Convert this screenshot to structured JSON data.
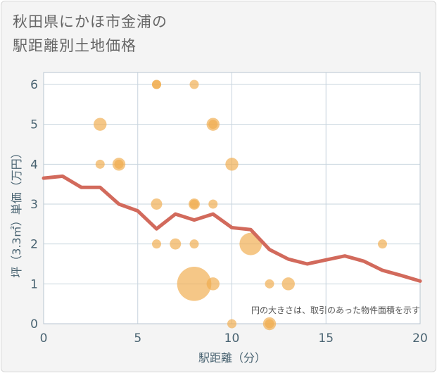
{
  "title_line1": "秋田県にかほ市金浦の",
  "title_line2": "駅距離別土地価格",
  "note": "円の大きさは、取引のあった物件面積を示す",
  "colors": {
    "background": "#f4f4f4",
    "plot": "#ffffff",
    "grid": "#c7d4de",
    "bubble": "#f0ad4e",
    "line": "#d26a5c",
    "axis_text": "#4a6472"
  },
  "chart_data": {
    "type": "scatter",
    "xlabel": "駅距離（分）",
    "ylabel": "坪（3.3㎡）単価（万円）",
    "xlim": [
      0,
      20
    ],
    "ylim": [
      0,
      6.3
    ],
    "xticks": [
      0,
      5,
      10,
      15,
      20
    ],
    "yticks": [
      0,
      1,
      2,
      3,
      4,
      5,
      6
    ],
    "bubbles": [
      {
        "x": 3,
        "y": 5,
        "size": 2
      },
      {
        "x": 3,
        "y": 4,
        "size": 1
      },
      {
        "x": 4,
        "y": 4,
        "size": 2
      },
      {
        "x": 4,
        "y": 4,
        "size": 1
      },
      {
        "x": 6,
        "y": 6,
        "size": 1
      },
      {
        "x": 6,
        "y": 6,
        "size": 1
      },
      {
        "x": 6,
        "y": 3,
        "size": 1.5
      },
      {
        "x": 6,
        "y": 2,
        "size": 1
      },
      {
        "x": 7,
        "y": 2,
        "size": 1.5
      },
      {
        "x": 8,
        "y": 6,
        "size": 1
      },
      {
        "x": 8,
        "y": 3,
        "size": 1.5
      },
      {
        "x": 8,
        "y": 3,
        "size": 1
      },
      {
        "x": 8,
        "y": 2,
        "size": 1
      },
      {
        "x": 8,
        "y": 1,
        "size": 14
      },
      {
        "x": 9,
        "y": 5,
        "size": 2
      },
      {
        "x": 9,
        "y": 5,
        "size": 1
      },
      {
        "x": 9,
        "y": 3,
        "size": 1
      },
      {
        "x": 9,
        "y": 1,
        "size": 2
      },
      {
        "x": 10,
        "y": 4,
        "size": 2
      },
      {
        "x": 10,
        "y": 0,
        "size": 1
      },
      {
        "x": 11,
        "y": 2,
        "size": 6
      },
      {
        "x": 12,
        "y": 1,
        "size": 1
      },
      {
        "x": 12,
        "y": 0,
        "size": 2
      },
      {
        "x": 12,
        "y": 0,
        "size": 1
      },
      {
        "x": 13,
        "y": 1,
        "size": 2
      },
      {
        "x": 18,
        "y": 2,
        "size": 1
      }
    ],
    "trend_line": {
      "x": [
        0,
        1,
        2,
        3,
        4,
        5,
        6,
        7,
        8,
        9,
        10,
        11,
        12,
        13,
        14,
        15,
        16,
        17,
        18,
        19,
        20
      ],
      "y": [
        3.65,
        3.7,
        3.42,
        3.42,
        3.0,
        2.83,
        2.38,
        2.75,
        2.6,
        2.75,
        2.41,
        2.36,
        1.86,
        1.62,
        1.5,
        1.6,
        1.7,
        1.57,
        1.34,
        1.21,
        1.07
      ]
    }
  }
}
